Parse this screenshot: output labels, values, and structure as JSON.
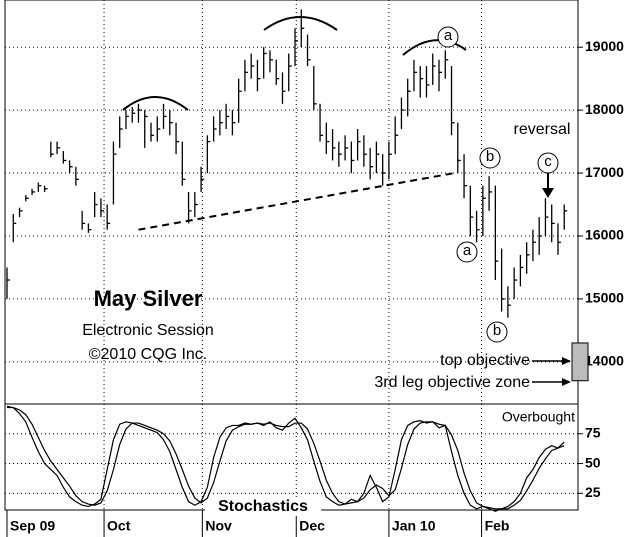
{
  "chart_data": [
    {
      "type": "ohlc",
      "title": "May Silver",
      "subtitle": "Electronic Session",
      "credit": "©2010 CQG Inc.",
      "reversal": "reversal",
      "top_objective": "top objective",
      "zone_label": "3rd leg objective zone",
      "wave_labels": [
        "a",
        "b",
        "a",
        "b",
        "c"
      ],
      "color": "#000000",
      "xlim": [
        -0.32,
        91.2
      ],
      "ylim": [
        13330,
        19750
      ],
      "yticks": [
        14000,
        15000,
        16000,
        17000,
        18000,
        19000
      ],
      "grid": true,
      "high": [
        15500,
        16350,
        16450,
        16650,
        16750,
        16850,
        16800,
        17500,
        17500,
        17350,
        17200,
        17100,
        16400,
        16200,
        16700,
        16600,
        16500,
        17500,
        17900,
        18000,
        18050,
        18100,
        18000,
        17800,
        17900,
        18100,
        18000,
        17800,
        17500,
        16700,
        16700,
        17100,
        17600,
        17900,
        18000,
        18100,
        18000,
        18500,
        18800,
        18900,
        18800,
        19000,
        18950,
        18800,
        18600,
        18900,
        19300,
        19600,
        19200,
        18700,
        18100,
        17800,
        17700,
        17500,
        17600,
        17500,
        17700,
        17600,
        17400,
        17500,
        17300,
        17500,
        17900,
        18200,
        18500,
        18800,
        18700,
        18700,
        18900,
        18800,
        18950,
        18700,
        17800,
        17300,
        16800,
        16400,
        16800,
        16950,
        16800,
        15800,
        15200,
        15500,
        15700,
        15900,
        16100,
        16300,
        16600,
        16500,
        16200,
        16500
      ],
      "low": [
        15000,
        15900,
        16300,
        16550,
        16650,
        16700,
        16700,
        17250,
        17300,
        17150,
        17000,
        16800,
        16100,
        16050,
        16300,
        16300,
        16100,
        16500,
        17400,
        17700,
        17800,
        17800,
        17400,
        17500,
        17500,
        17700,
        17600,
        17300,
        16800,
        16200,
        16300,
        16700,
        17000,
        17500,
        17600,
        17700,
        17600,
        17800,
        18300,
        18500,
        18300,
        18500,
        18600,
        18400,
        18100,
        18300,
        18700,
        19000,
        18700,
        18000,
        17500,
        17300,
        17200,
        17100,
        17200,
        17000,
        17200,
        17100,
        16900,
        17000,
        16800,
        16900,
        17300,
        17700,
        17900,
        18300,
        18200,
        18200,
        18400,
        18300,
        18500,
        17600,
        17000,
        16600,
        16000,
        15900,
        16000,
        16400,
        15300,
        14800,
        14700,
        15000,
        15200,
        15400,
        15600,
        15700,
        16000,
        15900,
        15700,
        16100
      ],
      "close": [
        15300,
        16200,
        16400,
        16600,
        16700,
        16800,
        16750,
        17300,
        17400,
        17200,
        17100,
        16900,
        16200,
        16100,
        16500,
        16400,
        16200,
        17300,
        17700,
        17900,
        17950,
        18000,
        17900,
        17600,
        17700,
        17900,
        17800,
        17500,
        16900,
        16400,
        16500,
        16900,
        17500,
        17700,
        17800,
        17900,
        17800,
        18300,
        18600,
        18700,
        18500,
        18900,
        18800,
        18500,
        18300,
        18700,
        19100,
        19300,
        18800,
        18100,
        17600,
        17500,
        17400,
        17300,
        17400,
        17200,
        17500,
        17300,
        17100,
        17300,
        17000,
        17300,
        17600,
        18000,
        18300,
        18600,
        18500,
        18400,
        18700,
        18600,
        18800,
        17800,
        17200,
        16800,
        16300,
        16100,
        16600,
        16700,
        15600,
        15000,
        14900,
        15300,
        15500,
        15700,
        15900,
        16000,
        16300,
        16200,
        15900,
        16400
      ],
      "trendline": {
        "x": [
          21,
          71.5
        ],
        "y": [
          16100,
          17000
        ]
      },
      "objective_zone": [
        13700,
        14300
      ],
      "zone_color": "#bbbbbb"
    },
    {
      "type": "line",
      "title": "Stochastics",
      "annotation": "Overbought",
      "xlim": [
        -0.32,
        91.2
      ],
      "ylim": [
        11,
        100
      ],
      "yticks": [
        25,
        50,
        75
      ],
      "grid": true,
      "xticks": [
        {
          "value": 0,
          "label": "Sep 09"
        },
        {
          "value": 15.5,
          "label": "Oct"
        },
        {
          "value": 31.2,
          "label": "Nov"
        },
        {
          "value": 46.2,
          "label": "Dec"
        },
        {
          "value": 61,
          "label": "Jan 10"
        },
        {
          "value": 75.8,
          "label": "Feb"
        }
      ],
      "series": [
        {
          "color": "#000000",
          "values": [
            98,
            97,
            92,
            85,
            72,
            60,
            50,
            45,
            40,
            30,
            22,
            18,
            15,
            14,
            16,
            20,
            45,
            70,
            83,
            85,
            84,
            82,
            80,
            78,
            76,
            70,
            60,
            45,
            30,
            18,
            15,
            18,
            30,
            55,
            72,
            80,
            82,
            82,
            84,
            83,
            84,
            82,
            85,
            80,
            78,
            84,
            88,
            80,
            70,
            52,
            35,
            22,
            18,
            15,
            16,
            20,
            18,
            25,
            40,
            30,
            18,
            22,
            45,
            70,
            82,
            85,
            86,
            84,
            85,
            80,
            82,
            60,
            40,
            25,
            15,
            12,
            14,
            12,
            10,
            12,
            14,
            18,
            25,
            38,
            45,
            55,
            62,
            65,
            63,
            68
          ]
        },
        {
          "color": "#000000",
          "values": [
            97,
            97,
            95,
            91,
            83,
            72,
            61,
            52,
            45,
            38,
            31,
            23,
            18,
            16,
            15,
            17,
            27,
            45,
            66,
            79,
            84,
            84,
            82,
            80,
            78,
            75,
            69,
            58,
            45,
            31,
            21,
            17,
            21,
            34,
            52,
            69,
            78,
            81,
            83,
            83,
            84,
            83,
            84,
            82,
            81,
            81,
            84,
            84,
            79,
            67,
            52,
            36,
            25,
            18,
            16,
            17,
            18,
            21,
            28,
            32,
            29,
            23,
            28,
            46,
            66,
            79,
            84,
            85,
            85,
            83,
            82,
            74,
            61,
            42,
            27,
            17,
            14,
            13,
            12,
            12,
            12,
            15,
            19,
            27,
            36,
            46,
            54,
            61,
            63,
            65
          ]
        }
      ]
    }
  ]
}
